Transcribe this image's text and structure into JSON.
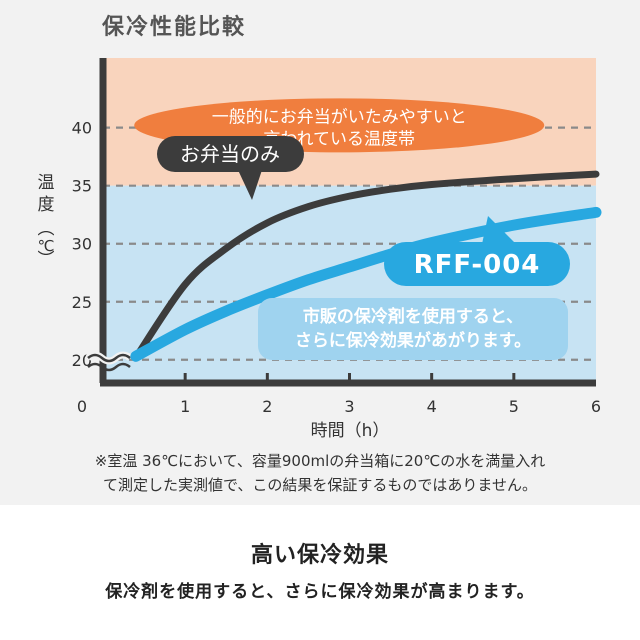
{
  "chart_data": {
    "type": "line",
    "title": "保冷性能比較",
    "xlabel": "時間（h）",
    "ylabel": "温度（℃）",
    "xlim": [
      0,
      6
    ],
    "ylim": [
      18,
      46
    ],
    "x_ticks": [
      "0",
      "1",
      "2",
      "3",
      "4",
      "5",
      "6"
    ],
    "y_ticks": [
      "20",
      "25",
      "30",
      "35",
      "40"
    ],
    "grid": "horizontal-dashed",
    "bands": [
      {
        "from": 35,
        "to": 46,
        "color": "#f9d4bd",
        "label": "一般的にお弁当がいたみやすいと言われている温度帯"
      },
      {
        "from": 18,
        "to": 35,
        "color": "#c7e3f3"
      }
    ],
    "series": [
      {
        "name": "お弁当のみ",
        "color": "#3c3c3c",
        "x": [
          0.4,
          1.0,
          1.5,
          2.0,
          2.5,
          3.0,
          3.5,
          4.0,
          5.0,
          6.0
        ],
        "y": [
          20.2,
          26.5,
          29.6,
          31.8,
          33.2,
          34.1,
          34.7,
          35.1,
          35.6,
          36.0
        ]
      },
      {
        "name": "RFF-004",
        "color": "#28a8e0",
        "x": [
          0.4,
          1.0,
          1.5,
          2.0,
          2.5,
          3.0,
          3.5,
          4.0,
          5.0,
          6.0
        ],
        "y": [
          20.3,
          22.6,
          24.2,
          25.6,
          26.9,
          28.0,
          29.1,
          30.1,
          31.6,
          32.7
        ]
      }
    ],
    "annotations": {
      "band_note": [
        "一般的にお弁当がいたみやすいと",
        "言われている温度帯"
      ],
      "callout_note": [
        "市販の保冷剤を使用すると、",
        "さらに保冷効果があがります。"
      ]
    },
    "footnote": [
      "※室温 36℃において、容量900mlの弁当箱に20℃の水を満量入れ",
      "て測定した実測値で、この結果を保証するものではありません。"
    ]
  },
  "section": {
    "title": "高い保冷効果",
    "text": "保冷剤を使用すると、さらに保冷効果が高まります。"
  },
  "colors": {
    "panel_bg": "#f2f2f2",
    "band_orange": "#f9d4bd",
    "band_blue": "#c7e3f3",
    "bubble_orange": "#f07e3e",
    "callout_blue": "#9fd3ef",
    "axis": "#3c3c3c",
    "text_dark": "#333333"
  }
}
